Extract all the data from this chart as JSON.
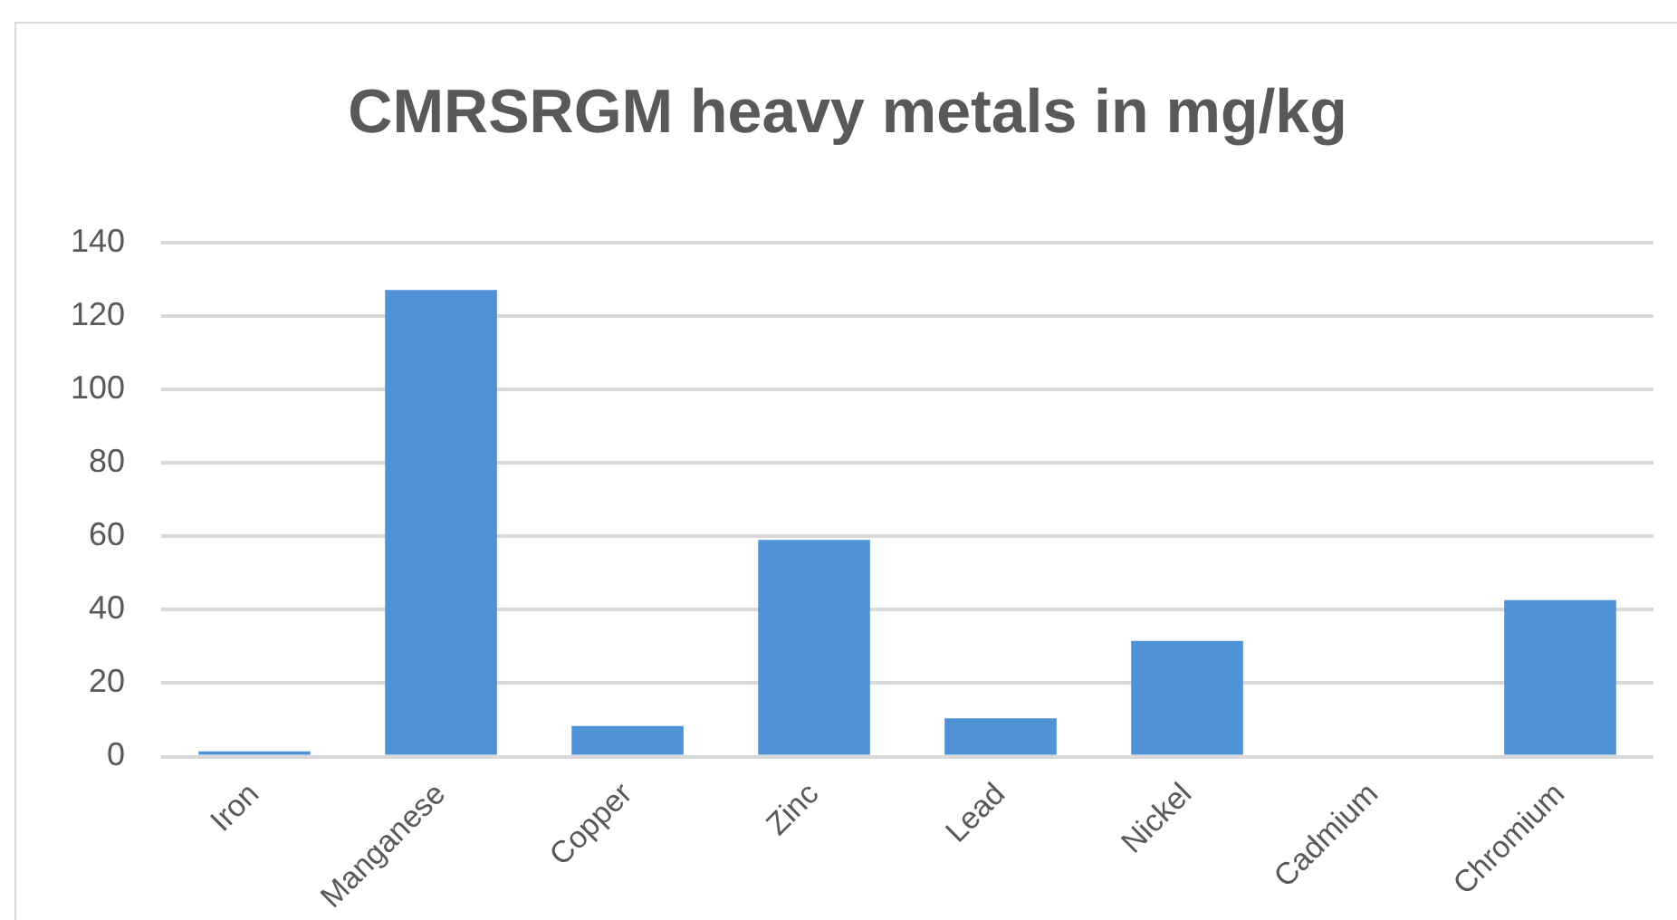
{
  "chart_data": {
    "type": "bar",
    "title": "CMRSRGM heavy metals in mg/kg",
    "categories": [
      "Iron",
      "Manganese",
      "Copper",
      "Zinc",
      "Lead",
      "Nickel",
      "Cadmium",
      "Chromium"
    ],
    "values": [
      1.4,
      127,
      8.3,
      59,
      10.4,
      31.5,
      0,
      42.6
    ],
    "color": "#4f92d6",
    "ylim": [
      0,
      140
    ],
    "yticks": [
      0,
      20,
      40,
      60,
      80,
      100,
      120,
      140
    ],
    "grid": "y",
    "legend": false
  }
}
